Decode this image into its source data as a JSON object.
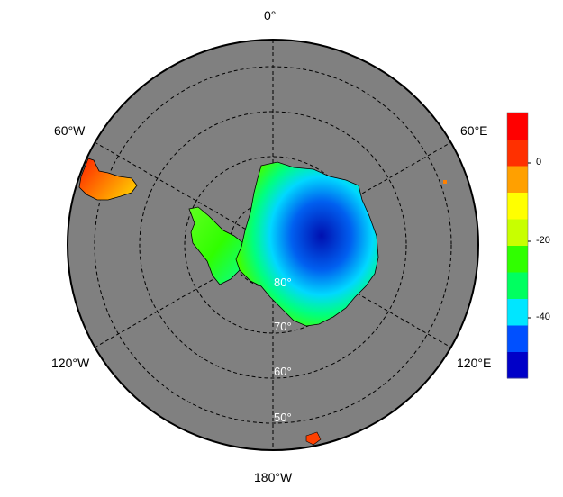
{
  "map": {
    "projection": "south-polar-stereographic",
    "ocean_color": "#808080",
    "graticule_style": "dashed",
    "longitude_labels": {
      "top": "0°",
      "upper_left": "60°W",
      "upper_right": "60°E",
      "lower_left": "120°W",
      "lower_right": "120°E",
      "bottom": "180°W"
    },
    "latitude_labels": [
      "80°",
      "70°",
      "60°",
      "50°"
    ]
  },
  "colorbar": {
    "colors": [
      "#0000c8",
      "#0050ff",
      "#00e6ff",
      "#00ff60",
      "#30ff00",
      "#c8ff00",
      "#ffff00",
      "#ffa000",
      "#ff3000",
      "#ff0000"
    ],
    "tick_labels": [
      "0",
      "-20",
      "-40"
    ],
    "range": [
      -55,
      13
    ]
  }
}
